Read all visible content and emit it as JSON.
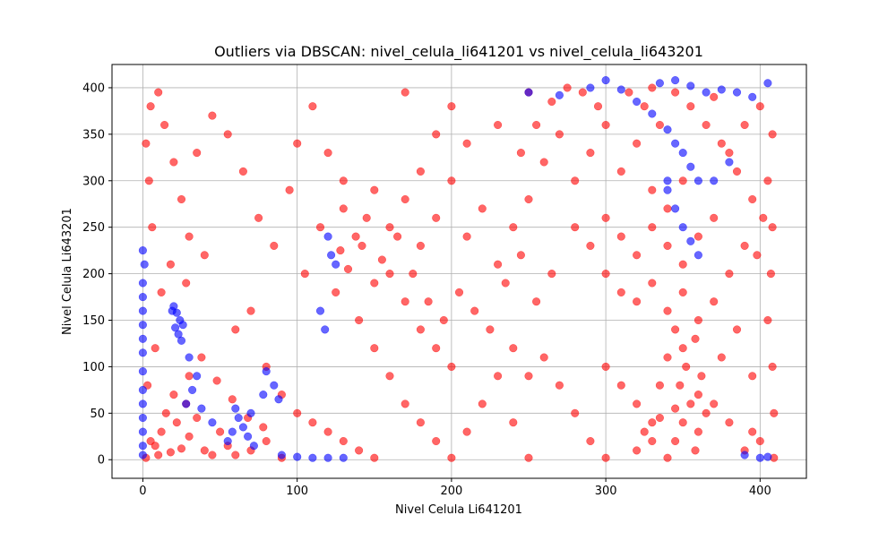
{
  "chart_data": {
    "type": "scatter",
    "title": "Outliers via DBSCAN: nivel_celula_li641201 vs nivel_celula_li643201",
    "xlabel": "Nivel Celula Li641201",
    "ylabel": "Nivel Celula Li643201",
    "xlim": [
      -20,
      430
    ],
    "ylim": [
      -20,
      425
    ],
    "xticks": [
      0,
      100,
      200,
      300,
      400
    ],
    "yticks": [
      0,
      50,
      100,
      150,
      200,
      250,
      300,
      350,
      400
    ],
    "grid": true,
    "marker_alpha": 0.6,
    "series": [
      {
        "color": "#ff0000",
        "points": [
          [
            2,
            2
          ],
          [
            10,
            5
          ],
          [
            18,
            8
          ],
          [
            25,
            12
          ],
          [
            5,
            20
          ],
          [
            12,
            30
          ],
          [
            22,
            40
          ],
          [
            30,
            25
          ],
          [
            40,
            10
          ],
          [
            45,
            5
          ],
          [
            8,
            15
          ],
          [
            15,
            50
          ],
          [
            28,
            60
          ],
          [
            35,
            45
          ],
          [
            50,
            30
          ],
          [
            55,
            15
          ],
          [
            60,
            5
          ],
          [
            70,
            10
          ],
          [
            80,
            20
          ],
          [
            90,
            2
          ],
          [
            3,
            80
          ],
          [
            8,
            120
          ],
          [
            12,
            180
          ],
          [
            6,
            250
          ],
          [
            4,
            300
          ],
          [
            2,
            340
          ],
          [
            5,
            380
          ],
          [
            10,
            395
          ],
          [
            14,
            360
          ],
          [
            20,
            320
          ],
          [
            25,
            280
          ],
          [
            30,
            240
          ],
          [
            18,
            210
          ],
          [
            28,
            190
          ],
          [
            40,
            220
          ],
          [
            35,
            330
          ],
          [
            45,
            370
          ],
          [
            55,
            350
          ],
          [
            65,
            310
          ],
          [
            75,
            260
          ],
          [
            85,
            230
          ],
          [
            95,
            290
          ],
          [
            100,
            340
          ],
          [
            110,
            380
          ],
          [
            120,
            330
          ],
          [
            130,
            300
          ],
          [
            115,
            250
          ],
          [
            105,
            200
          ],
          [
            125,
            180
          ],
          [
            140,
            150
          ],
          [
            150,
            120
          ],
          [
            160,
            90
          ],
          [
            170,
            60
          ],
          [
            180,
            40
          ],
          [
            190,
            20
          ],
          [
            200,
            2
          ],
          [
            210,
            30
          ],
          [
            220,
            60
          ],
          [
            230,
            90
          ],
          [
            240,
            120
          ],
          [
            160,
            250
          ],
          [
            170,
            280
          ],
          [
            180,
            230
          ],
          [
            190,
            260
          ],
          [
            200,
            300
          ],
          [
            210,
            240
          ],
          [
            220,
            270
          ],
          [
            230,
            210
          ],
          [
            240,
            250
          ],
          [
            250,
            280
          ],
          [
            175,
            200
          ],
          [
            185,
            170
          ],
          [
            195,
            150
          ],
          [
            205,
            180
          ],
          [
            215,
            160
          ],
          [
            225,
            140
          ],
          [
            235,
            190
          ],
          [
            245,
            220
          ],
          [
            255,
            170
          ],
          [
            265,
            200
          ],
          [
            260,
            320
          ],
          [
            270,
            350
          ],
          [
            280,
            300
          ],
          [
            290,
            330
          ],
          [
            300,
            360
          ],
          [
            310,
            310
          ],
          [
            320,
            340
          ],
          [
            330,
            290
          ],
          [
            340,
            270
          ],
          [
            350,
            300
          ],
          [
            280,
            250
          ],
          [
            290,
            230
          ],
          [
            300,
            260
          ],
          [
            310,
            240
          ],
          [
            320,
            220
          ],
          [
            330,
            250
          ],
          [
            340,
            230
          ],
          [
            350,
            210
          ],
          [
            360,
            240
          ],
          [
            370,
            260
          ],
          [
            300,
            200
          ],
          [
            310,
            180
          ],
          [
            320,
            170
          ],
          [
            330,
            190
          ],
          [
            340,
            160
          ],
          [
            350,
            180
          ],
          [
            360,
            150
          ],
          [
            370,
            170
          ],
          [
            380,
            200
          ],
          [
            390,
            230
          ],
          [
            350,
            120
          ],
          [
            352,
            100
          ],
          [
            348,
            80
          ],
          [
            355,
            60
          ],
          [
            350,
            40
          ],
          [
            345,
            20
          ],
          [
            358,
            10
          ],
          [
            340,
            2
          ],
          [
            360,
            30
          ],
          [
            365,
            50
          ],
          [
            300,
            100
          ],
          [
            310,
            80
          ],
          [
            320,
            60
          ],
          [
            330,
            40
          ],
          [
            290,
            20
          ],
          [
            280,
            50
          ],
          [
            270,
            80
          ],
          [
            260,
            110
          ],
          [
            250,
            90
          ],
          [
            240,
            40
          ],
          [
            380,
            330
          ],
          [
            390,
            360
          ],
          [
            400,
            380
          ],
          [
            408,
            350
          ],
          [
            405,
            300
          ],
          [
            408,
            250
          ],
          [
            407,
            200
          ],
          [
            405,
            150
          ],
          [
            408,
            100
          ],
          [
            409,
            50
          ],
          [
            409,
            2
          ],
          [
            400,
            20
          ],
          [
            395,
            90
          ],
          [
            385,
            140
          ],
          [
            375,
            110
          ],
          [
            370,
            390
          ],
          [
            330,
            400
          ],
          [
            250,
            395
          ],
          [
            200,
            380
          ],
          [
            170,
            395
          ],
          [
            150,
            290
          ],
          [
            145,
            260
          ],
          [
            138,
            240
          ],
          [
            130,
            270
          ],
          [
            128,
            225
          ],
          [
            133,
            205
          ],
          [
            142,
            230
          ],
          [
            155,
            215
          ],
          [
            165,
            240
          ],
          [
            180,
            310
          ],
          [
            190,
            350
          ],
          [
            210,
            340
          ],
          [
            230,
            360
          ],
          [
            245,
            330
          ],
          [
            255,
            360
          ],
          [
            265,
            385
          ],
          [
            275,
            400
          ],
          [
            285,
            395
          ],
          [
            295,
            380
          ],
          [
            315,
            395
          ],
          [
            325,
            380
          ],
          [
            335,
            360
          ],
          [
            345,
            395
          ],
          [
            355,
            380
          ],
          [
            365,
            360
          ],
          [
            375,
            340
          ],
          [
            385,
            310
          ],
          [
            395,
            280
          ],
          [
            402,
            260
          ],
          [
            398,
            220
          ],
          [
            60,
            140
          ],
          [
            70,
            160
          ],
          [
            80,
            100
          ],
          [
            90,
            70
          ],
          [
            100,
            50
          ],
          [
            110,
            40
          ],
          [
            120,
            30
          ],
          [
            130,
            20
          ],
          [
            140,
            10
          ],
          [
            150,
            2
          ],
          [
            250,
            2
          ],
          [
            300,
            2
          ],
          [
            320,
            10
          ],
          [
            330,
            20
          ],
          [
            325,
            30
          ],
          [
            335,
            45
          ],
          [
            345,
            55
          ],
          [
            360,
            70
          ],
          [
            362,
            90
          ],
          [
            358,
            130
          ],
          [
            345,
            140
          ],
          [
            340,
            110
          ],
          [
            335,
            80
          ],
          [
            370,
            60
          ],
          [
            380,
            40
          ],
          [
            390,
            10
          ],
          [
            395,
            30
          ],
          [
            200,
            100
          ],
          [
            190,
            120
          ],
          [
            180,
            140
          ],
          [
            170,
            170
          ],
          [
            160,
            200
          ],
          [
            150,
            190
          ],
          [
            20,
            70
          ],
          [
            30,
            90
          ],
          [
            38,
            110
          ],
          [
            48,
            85
          ],
          [
            58,
            65
          ],
          [
            68,
            45
          ],
          [
            78,
            35
          ]
        ]
      },
      {
        "color": "#0000ff",
        "points": [
          [
            20,
            165
          ],
          [
            22,
            158
          ],
          [
            24,
            150
          ],
          [
            21,
            142
          ],
          [
            23,
            135
          ],
          [
            25,
            128
          ],
          [
            19,
            160
          ],
          [
            26,
            145
          ],
          [
            0,
            225
          ],
          [
            1,
            210
          ],
          [
            0,
            190
          ],
          [
            0,
            175
          ],
          [
            0,
            160
          ],
          [
            0,
            145
          ],
          [
            0,
            130
          ],
          [
            0,
            115
          ],
          [
            0,
            95
          ],
          [
            0,
            75
          ],
          [
            0,
            60
          ],
          [
            0,
            45
          ],
          [
            0,
            30
          ],
          [
            0,
            15
          ],
          [
            0,
            5
          ],
          [
            30,
            110
          ],
          [
            35,
            90
          ],
          [
            32,
            75
          ],
          [
            28,
            60
          ],
          [
            38,
            55
          ],
          [
            45,
            40
          ],
          [
            60,
            55
          ],
          [
            62,
            45
          ],
          [
            65,
            35
          ],
          [
            68,
            25
          ],
          [
            70,
            50
          ],
          [
            58,
            30
          ],
          [
            55,
            20
          ],
          [
            72,
            15
          ],
          [
            80,
            95
          ],
          [
            85,
            80
          ],
          [
            88,
            65
          ],
          [
            78,
            70
          ],
          [
            90,
            5
          ],
          [
            100,
            3
          ],
          [
            110,
            2
          ],
          [
            120,
            2
          ],
          [
            130,
            2
          ],
          [
            115,
            160
          ],
          [
            118,
            140
          ],
          [
            120,
            240
          ],
          [
            122,
            220
          ],
          [
            125,
            210
          ],
          [
            250,
            395
          ],
          [
            270,
            392
          ],
          [
            290,
            400
          ],
          [
            300,
            408
          ],
          [
            310,
            398
          ],
          [
            320,
            385
          ],
          [
            330,
            372
          ],
          [
            340,
            355
          ],
          [
            345,
            340
          ],
          [
            350,
            330
          ],
          [
            355,
            315
          ],
          [
            360,
            300
          ],
          [
            335,
            405
          ],
          [
            345,
            408
          ],
          [
            355,
            402
          ],
          [
            365,
            395
          ],
          [
            375,
            398
          ],
          [
            385,
            395
          ],
          [
            395,
            390
          ],
          [
            405,
            405
          ],
          [
            340,
            290
          ],
          [
            345,
            270
          ],
          [
            350,
            250
          ],
          [
            355,
            235
          ],
          [
            360,
            220
          ],
          [
            340,
            300
          ],
          [
            370,
            300
          ],
          [
            380,
            320
          ],
          [
            400,
            2
          ],
          [
            405,
            3
          ],
          [
            390,
            5
          ]
        ]
      }
    ]
  }
}
